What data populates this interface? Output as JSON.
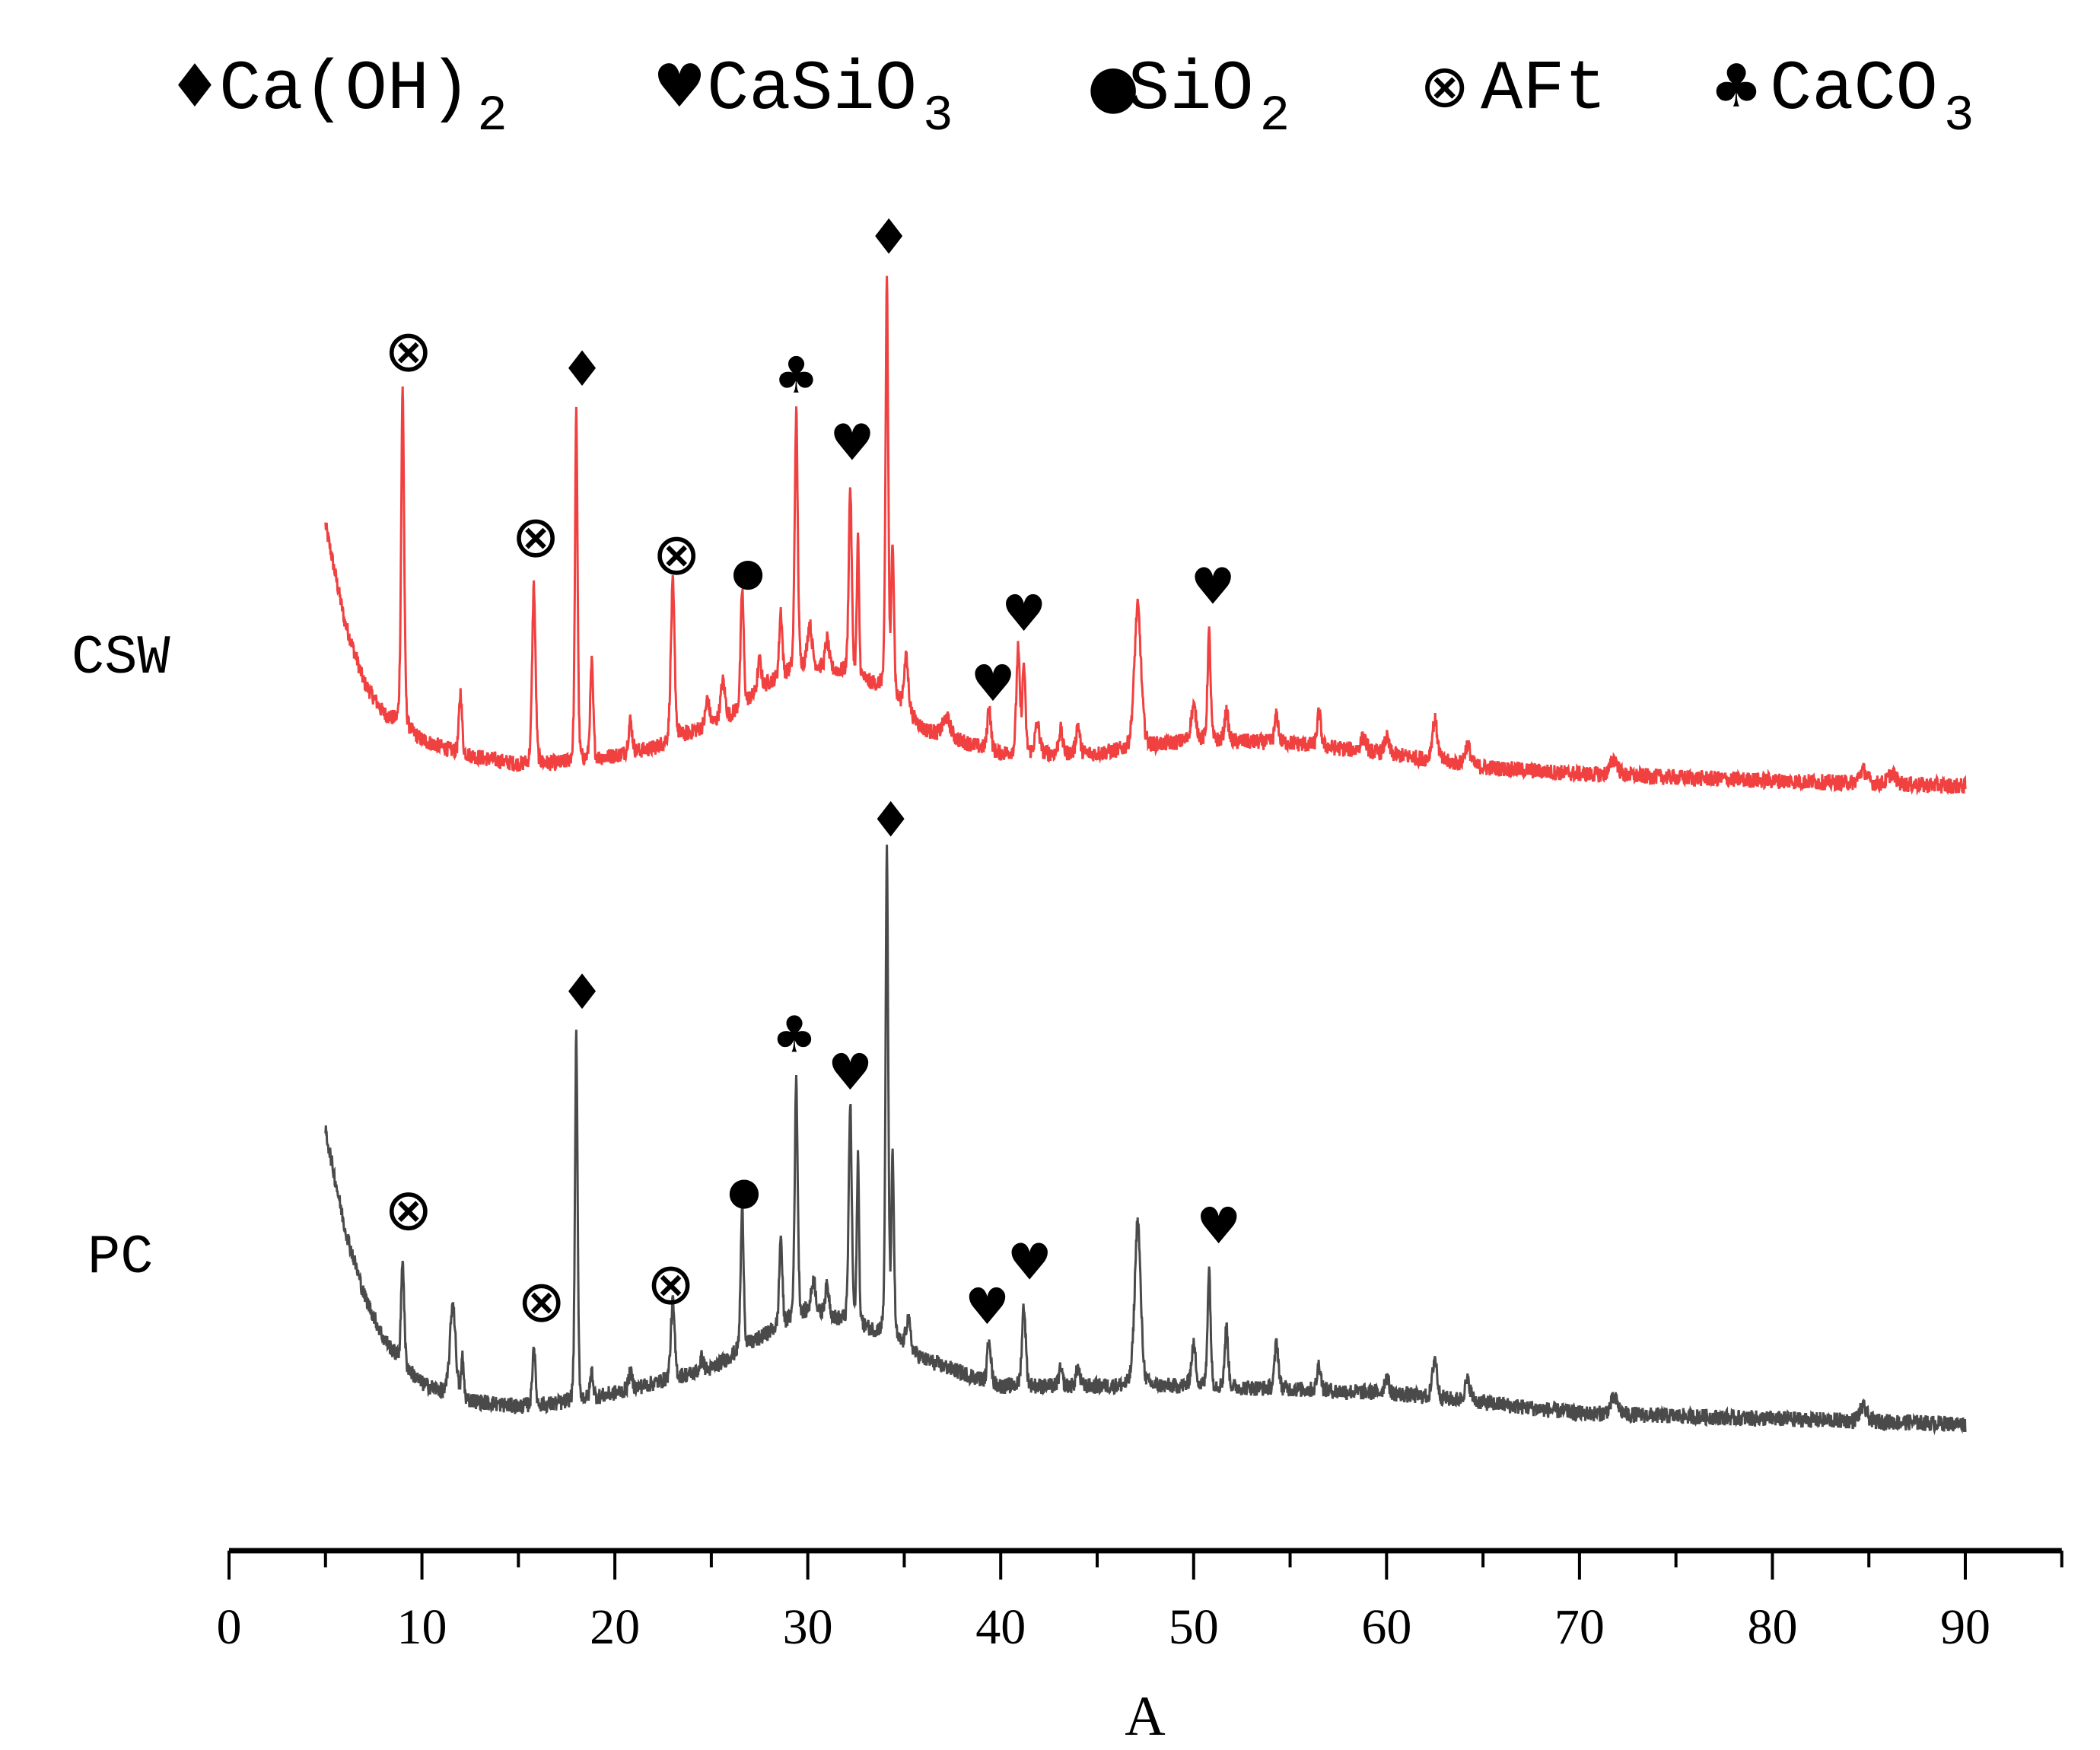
{
  "chart_data": {
    "type": "line",
    "title": "",
    "xlabel": "A",
    "ylabel": "",
    "xlim": [
      0,
      95
    ],
    "ylim": [
      0,
      1000
    ],
    "xticks": [
      0,
      10,
      20,
      30,
      40,
      50,
      60,
      70,
      80,
      90
    ],
    "xtick_labels": [
      "0",
      "10",
      "20",
      "30",
      "40",
      "50",
      "60",
      "70",
      "80",
      "90"
    ],
    "minor_tick_step": 5,
    "grid": false,
    "legend": {
      "placement": "top",
      "items": [
        {
          "symbol": "♦",
          "text": "Ca(OH)",
          "sub": "2"
        },
        {
          "symbol": "♥",
          "text": "CaSiO",
          "sub": "3"
        },
        {
          "symbol": "●",
          "text": "SiO",
          "sub": "2"
        },
        {
          "symbol": "⊗",
          "text": "AFt",
          "sub": ""
        },
        {
          "symbol": "♣",
          "text": "CaCO",
          "sub": "3"
        }
      ]
    },
    "series": [
      {
        "name": "CSW",
        "color": "#f04040",
        "x_range": [
          5,
          90
        ],
        "background": [
          [
            5,
            762
          ],
          [
            6,
            690
          ],
          [
            7,
            645
          ],
          [
            8,
            622
          ],
          [
            9,
            612
          ],
          [
            10,
            602
          ],
          [
            12,
            592
          ],
          [
            15,
            584
          ],
          [
            18,
            585
          ],
          [
            22,
            596
          ],
          [
            26,
            620
          ],
          [
            28,
            645
          ],
          [
            30,
            658
          ],
          [
            32,
            652
          ],
          [
            34,
            640
          ],
          [
            36,
            610
          ],
          [
            40,
            592
          ],
          [
            45,
            592
          ],
          [
            50,
            602
          ],
          [
            55,
            600
          ],
          [
            60,
            592
          ],
          [
            65,
            582
          ],
          [
            70,
            577
          ],
          [
            80,
            572
          ],
          [
            90,
            568
          ]
        ],
        "peaks": [
          [
            9.0,
            252,
            0.08
          ],
          [
            12.0,
            46,
            0.08
          ],
          [
            15.8,
            133,
            0.09
          ],
          [
            18.0,
            261,
            0.07
          ],
          [
            18.8,
            72,
            0.08
          ],
          [
            20.8,
            24,
            0.1
          ],
          [
            23.0,
            117,
            0.1
          ],
          [
            24.8,
            20,
            0.1
          ],
          [
            25.6,
            28,
            0.12
          ],
          [
            26.6,
            87,
            0.08
          ],
          [
            27.5,
            22,
            0.1
          ],
          [
            28.6,
            49,
            0.08
          ],
          [
            29.4,
            191,
            0.08
          ],
          [
            30.1,
            30,
            0.12
          ],
          [
            31.0,
            22,
            0.1
          ],
          [
            32.2,
            139,
            0.08
          ],
          [
            32.6,
            102,
            0.06
          ],
          [
            34.1,
            307,
            0.07
          ],
          [
            34.4,
            114,
            0.07
          ],
          [
            35.1,
            39,
            0.12
          ],
          [
            37.2,
            14,
            0.2
          ],
          [
            39.4,
            34,
            0.09
          ],
          [
            40.9,
            77,
            0.09
          ],
          [
            41.2,
            65,
            0.08
          ],
          [
            41.9,
            22,
            0.12
          ],
          [
            43.1,
            18,
            0.1
          ],
          [
            44.0,
            22,
            0.1
          ],
          [
            47.1,
            105,
            0.18
          ],
          [
            50.0,
            25,
            0.14
          ],
          [
            50.8,
            80,
            0.08
          ],
          [
            51.7,
            22,
            0.1
          ],
          [
            54.3,
            20,
            0.1
          ],
          [
            56.5,
            25,
            0.1
          ],
          [
            58.8,
            10,
            0.15
          ],
          [
            60.0,
            12,
            0.12
          ],
          [
            62.5,
            30,
            0.14
          ],
          [
            64.2,
            15,
            0.15
          ],
          [
            71.8,
            12,
            0.2
          ],
          [
            84.7,
            10,
            0.2
          ],
          [
            86.2,
            8,
            0.2
          ]
        ]
      },
      {
        "name": "PC",
        "color": "#4a4a4a",
        "x_range": [
          5,
          90
        ],
        "background": [
          [
            5,
            312
          ],
          [
            6,
            240
          ],
          [
            7,
            190
          ],
          [
            8,
            158
          ],
          [
            9,
            138
          ],
          [
            10,
            124
          ],
          [
            12,
            112
          ],
          [
            15,
            107
          ],
          [
            18,
            110
          ],
          [
            20,
            117
          ],
          [
            25,
            135
          ],
          [
            28,
            162
          ],
          [
            30,
            177
          ],
          [
            32,
            170
          ],
          [
            34,
            160
          ],
          [
            36,
            142
          ],
          [
            40,
            122
          ],
          [
            45,
            122
          ],
          [
            50,
            122
          ],
          [
            55,
            120
          ],
          [
            60,
            117
          ],
          [
            65,
            110
          ],
          [
            70,
            102
          ],
          [
            80,
            98
          ],
          [
            90,
            94
          ]
        ],
        "peaks": [
          [
            9.0,
            80,
            0.08
          ],
          [
            11.6,
            70,
            0.15
          ],
          [
            12.1,
            30,
            0.07
          ],
          [
            15.8,
            45,
            0.08
          ],
          [
            18.0,
            274,
            0.07
          ],
          [
            18.8,
            20,
            0.08
          ],
          [
            20.8,
            12,
            0.1
          ],
          [
            23.0,
            57,
            0.1
          ],
          [
            24.5,
            10,
            0.1
          ],
          [
            26.6,
            106,
            0.08
          ],
          [
            28.6,
            67,
            0.08
          ],
          [
            29.4,
            176,
            0.08
          ],
          [
            30.3,
            25,
            0.12
          ],
          [
            31.0,
            22,
            0.12
          ],
          [
            32.2,
            162,
            0.08
          ],
          [
            32.6,
            126,
            0.06
          ],
          [
            34.1,
            360,
            0.07
          ],
          [
            34.4,
            132,
            0.07
          ],
          [
            35.2,
            22,
            0.12
          ],
          [
            39.4,
            35,
            0.09
          ],
          [
            41.2,
            60,
            0.1
          ],
          [
            43.1,
            12,
            0.1
          ],
          [
            44.0,
            14,
            0.1
          ],
          [
            47.1,
            123,
            0.16
          ],
          [
            50.0,
            30,
            0.12
          ],
          [
            50.8,
            88,
            0.08
          ],
          [
            51.7,
            45,
            0.09
          ],
          [
            54.3,
            35,
            0.1
          ],
          [
            56.5,
            20,
            0.1
          ],
          [
            60.0,
            12,
            0.12
          ],
          [
            62.5,
            30,
            0.12
          ],
          [
            64.2,
            15,
            0.15
          ],
          [
            71.8,
            12,
            0.2
          ],
          [
            84.7,
            10,
            0.2
          ]
        ]
      }
    ],
    "series_labels": [
      "CSW",
      "PC"
    ],
    "annotations": [
      {
        "series": "CSW",
        "symbol": "⊗",
        "x": 9.3,
        "y": 890
      },
      {
        "series": "CSW",
        "symbol": "⊗",
        "x": 15.9,
        "y": 752
      },
      {
        "series": "CSW",
        "symbol": "♦",
        "x": 18.3,
        "y": 879
      },
      {
        "series": "CSW",
        "symbol": "⊗",
        "x": 23.2,
        "y": 739
      },
      {
        "series": "CSW",
        "symbol": "●",
        "x": 26.9,
        "y": 731
      },
      {
        "series": "CSW",
        "symbol": "♣",
        "x": 29.4,
        "y": 874
      },
      {
        "series": "CSW",
        "symbol": "♥",
        "x": 32.3,
        "y": 824
      },
      {
        "series": "CSW",
        "symbol": "♦",
        "x": 34.2,
        "y": 977
      },
      {
        "series": "CSW",
        "symbol": "♥",
        "x": 39.6,
        "y": 645
      },
      {
        "series": "CSW",
        "symbol": "♥",
        "x": 41.2,
        "y": 697
      },
      {
        "series": "CSW",
        "symbol": "♥",
        "x": 51.0,
        "y": 717
      },
      {
        "series": "PC",
        "symbol": "⊗",
        "x": 9.3,
        "y": 252
      },
      {
        "series": "PC",
        "symbol": "⊗",
        "x": 16.2,
        "y": 184
      },
      {
        "series": "PC",
        "symbol": "♦",
        "x": 18.3,
        "y": 416
      },
      {
        "series": "PC",
        "symbol": "⊗",
        "x": 22.9,
        "y": 197
      },
      {
        "series": "PC",
        "symbol": "●",
        "x": 26.7,
        "y": 271
      },
      {
        "series": "PC",
        "symbol": "♣",
        "x": 29.3,
        "y": 384
      },
      {
        "series": "PC",
        "symbol": "♥",
        "x": 32.2,
        "y": 356
      },
      {
        "series": "PC",
        "symbol": "♦",
        "x": 34.3,
        "y": 544
      },
      {
        "series": "PC",
        "symbol": "♥",
        "x": 39.3,
        "y": 182
      },
      {
        "series": "PC",
        "symbol": "♥",
        "x": 41.5,
        "y": 215
      },
      {
        "series": "PC",
        "symbol": "♥",
        "x": 51.3,
        "y": 242
      }
    ]
  }
}
